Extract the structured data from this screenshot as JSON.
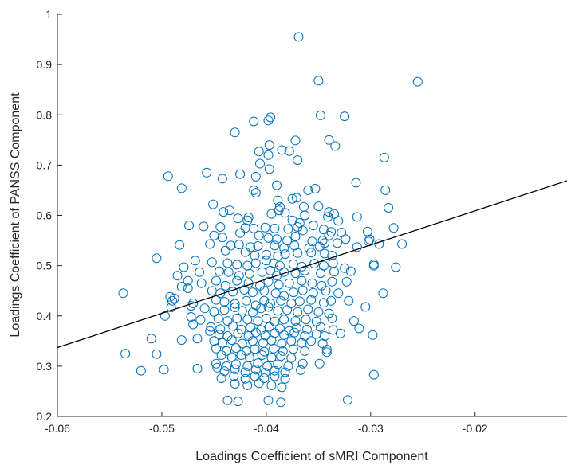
{
  "chart_data": {
    "type": "scatter",
    "title": "",
    "xlabel": "Loadings Coefficient of sMRI Component",
    "ylabel": "Loadings Coefficient of PANSS Component",
    "xlim": [
      -0.06,
      -0.0112
    ],
    "ylim": [
      0.2,
      1.0
    ],
    "xticks": [
      -0.06,
      -0.05,
      -0.04,
      -0.03,
      -0.02
    ],
    "xtick_labels": [
      "-0.06",
      "-0.05",
      "-0.04",
      "-0.03",
      "-0.02"
    ],
    "yticks": [
      0.2,
      0.3,
      0.4,
      0.5,
      0.6,
      0.7,
      0.8,
      0.9,
      1.0
    ],
    "ytick_labels": [
      "0.2",
      "0.3",
      "0.4",
      "0.5",
      "0.6",
      "0.7",
      "0.8",
      "0.9",
      "1"
    ],
    "grid": false,
    "marker_color": "#0072BD",
    "line_color": "#000000",
    "fit_line": {
      "x": [
        -0.06,
        -0.0112
      ],
      "y": [
        0.337,
        0.669
      ]
    },
    "points": [
      [
        -0.0369,
        0.955
      ],
      [
        -0.035,
        0.868
      ],
      [
        -0.0255,
        0.866
      ],
      [
        -0.0398,
        0.789
      ],
      [
        -0.0396,
        0.795
      ],
      [
        -0.0412,
        0.787
      ],
      [
        -0.0325,
        0.797
      ],
      [
        -0.0348,
        0.799
      ],
      [
        -0.043,
        0.765
      ],
      [
        -0.0372,
        0.749
      ],
      [
        -0.034,
        0.75
      ],
      [
        -0.0397,
        0.74
      ],
      [
        -0.0385,
        0.73
      ],
      [
        -0.0407,
        0.727
      ],
      [
        -0.0378,
        0.728
      ],
      [
        -0.0334,
        0.738
      ],
      [
        -0.0287,
        0.715
      ],
      [
        -0.037,
        0.71
      ],
      [
        -0.0398,
        0.72
      ],
      [
        -0.0406,
        0.703
      ],
      [
        -0.0397,
        0.692
      ],
      [
        -0.0425,
        0.682
      ],
      [
        -0.041,
        0.677
      ],
      [
        -0.0442,
        0.673
      ],
      [
        -0.0457,
        0.685
      ],
      [
        -0.0494,
        0.678
      ],
      [
        -0.039,
        0.66
      ],
      [
        -0.0412,
        0.65
      ],
      [
        -0.041,
        0.645
      ],
      [
        -0.036,
        0.65
      ],
      [
        -0.0353,
        0.653
      ],
      [
        -0.0314,
        0.665
      ],
      [
        -0.0286,
        0.65
      ],
      [
        -0.0481,
        0.654
      ],
      [
        -0.0375,
        0.633
      ],
      [
        -0.0389,
        0.63
      ],
      [
        -0.0371,
        0.635
      ],
      [
        -0.0387,
        0.617
      ],
      [
        -0.0364,
        0.617
      ],
      [
        -0.035,
        0.618
      ],
      [
        -0.0441,
        0.607
      ],
      [
        -0.0451,
        0.622
      ],
      [
        -0.0474,
        0.58
      ],
      [
        -0.046,
        0.578
      ],
      [
        -0.034,
        0.607
      ],
      [
        -0.0335,
        0.603
      ],
      [
        -0.0313,
        0.597
      ],
      [
        -0.0283,
        0.615
      ],
      [
        -0.0435,
        0.61
      ],
      [
        -0.0417,
        0.596
      ],
      [
        -0.0388,
        0.61
      ],
      [
        -0.0395,
        0.603
      ],
      [
        -0.0382,
        0.605
      ],
      [
        -0.0375,
        0.59
      ],
      [
        -0.0368,
        0.585
      ],
      [
        -0.0363,
        0.6
      ],
      [
        -0.0341,
        0.597
      ],
      [
        -0.0331,
        0.589
      ],
      [
        -0.0355,
        0.58
      ],
      [
        -0.0418,
        0.59
      ],
      [
        -0.0427,
        0.594
      ],
      [
        -0.0444,
        0.577
      ],
      [
        -0.042,
        0.575
      ],
      [
        -0.0412,
        0.574
      ],
      [
        -0.0401,
        0.576
      ],
      [
        -0.0392,
        0.574
      ],
      [
        -0.0379,
        0.573
      ],
      [
        -0.037,
        0.577
      ],
      [
        -0.0365,
        0.57
      ],
      [
        -0.0345,
        0.572
      ],
      [
        -0.0338,
        0.567
      ],
      [
        -0.0328,
        0.566
      ],
      [
        -0.0303,
        0.568
      ],
      [
        -0.0278,
        0.575
      ],
      [
        -0.045,
        0.56
      ],
      [
        -0.0442,
        0.556
      ],
      [
        -0.0425,
        0.565
      ],
      [
        -0.0407,
        0.56
      ],
      [
        -0.0398,
        0.555
      ],
      [
        -0.039,
        0.553
      ],
      [
        -0.038,
        0.55
      ],
      [
        -0.0372,
        0.558
      ],
      [
        -0.0356,
        0.548
      ],
      [
        -0.0346,
        0.55
      ],
      [
        -0.034,
        0.56
      ],
      [
        -0.0324,
        0.553
      ],
      [
        -0.0301,
        0.552
      ],
      [
        -0.0302,
        0.548
      ],
      [
        -0.0434,
        0.54
      ],
      [
        -0.0426,
        0.542
      ],
      [
        -0.0415,
        0.537
      ],
      [
        -0.0408,
        0.539
      ],
      [
        -0.0392,
        0.54
      ],
      [
        -0.0383,
        0.535
      ],
      [
        -0.0373,
        0.54
      ],
      [
        -0.0359,
        0.535
      ],
      [
        -0.0349,
        0.538
      ],
      [
        -0.0344,
        0.545
      ],
      [
        -0.0332,
        0.545
      ],
      [
        -0.0313,
        0.537
      ],
      [
        -0.0292,
        0.543
      ],
      [
        -0.027,
        0.543
      ],
      [
        -0.0483,
        0.541
      ],
      [
        -0.0454,
        0.543
      ],
      [
        -0.0439,
        0.53
      ],
      [
        -0.042,
        0.527
      ],
      [
        -0.0411,
        0.52
      ],
      [
        -0.04,
        0.522
      ],
      [
        -0.0389,
        0.519
      ],
      [
        -0.0382,
        0.523
      ],
      [
        -0.037,
        0.525
      ],
      [
        -0.0357,
        0.526
      ],
      [
        -0.0344,
        0.524
      ],
      [
        -0.0337,
        0.52
      ],
      [
        -0.0505,
        0.515
      ],
      [
        -0.0468,
        0.51
      ],
      [
        -0.0452,
        0.507
      ],
      [
        -0.0437,
        0.505
      ],
      [
        -0.0428,
        0.502
      ],
      [
        -0.0418,
        0.5
      ],
      [
        -0.041,
        0.505
      ],
      [
        -0.04,
        0.51
      ],
      [
        -0.0393,
        0.505
      ],
      [
        -0.0387,
        0.5
      ],
      [
        -0.0374,
        0.503
      ],
      [
        -0.0366,
        0.498
      ],
      [
        -0.0354,
        0.504
      ],
      [
        -0.0345,
        0.5
      ],
      [
        -0.0336,
        0.505
      ],
      [
        -0.0325,
        0.495
      ],
      [
        -0.0297,
        0.5
      ],
      [
        -0.0297,
        0.503
      ],
      [
        -0.0276,
        0.497
      ],
      [
        -0.0479,
        0.497
      ],
      [
        -0.0464,
        0.487
      ],
      [
        -0.0445,
        0.489
      ],
      [
        -0.0436,
        0.487
      ],
      [
        -0.0426,
        0.48
      ],
      [
        -0.0416,
        0.484
      ],
      [
        -0.0404,
        0.487
      ],
      [
        -0.0396,
        0.49
      ],
      [
        -0.039,
        0.48
      ],
      [
        -0.0383,
        0.487
      ],
      [
        -0.0372,
        0.485
      ],
      [
        -0.0363,
        0.49
      ],
      [
        -0.0348,
        0.485
      ],
      [
        -0.0335,
        0.488
      ],
      [
        -0.0319,
        0.489
      ],
      [
        -0.0485,
        0.48
      ],
      [
        -0.0475,
        0.47
      ],
      [
        -0.0462,
        0.465
      ],
      [
        -0.0448,
        0.47
      ],
      [
        -0.0439,
        0.46
      ],
      [
        -0.0428,
        0.47
      ],
      [
        -0.0417,
        0.465
      ],
      [
        -0.0406,
        0.46
      ],
      [
        -0.0398,
        0.468
      ],
      [
        -0.0388,
        0.462
      ],
      [
        -0.0378,
        0.465
      ],
      [
        -0.0366,
        0.47
      ],
      [
        -0.0356,
        0.465
      ],
      [
        -0.0347,
        0.46
      ],
      [
        -0.0337,
        0.468
      ],
      [
        -0.0323,
        0.468
      ],
      [
        -0.0288,
        0.445
      ],
      [
        -0.0481,
        0.458
      ],
      [
        -0.0475,
        0.455
      ],
      [
        -0.0452,
        0.45
      ],
      [
        -0.0444,
        0.445
      ],
      [
        -0.0432,
        0.448
      ],
      [
        -0.0421,
        0.452
      ],
      [
        -0.0413,
        0.447
      ],
      [
        -0.0402,
        0.45
      ],
      [
        -0.0391,
        0.445
      ],
      [
        -0.0383,
        0.44
      ],
      [
        -0.0374,
        0.447
      ],
      [
        -0.0365,
        0.451
      ],
      [
        -0.0355,
        0.446
      ],
      [
        -0.0343,
        0.45
      ],
      [
        -0.0331,
        0.445
      ],
      [
        -0.0537,
        0.445
      ],
      [
        -0.0492,
        0.438
      ],
      [
        -0.0488,
        0.435
      ],
      [
        -0.049,
        0.43
      ],
      [
        -0.047,
        0.425
      ],
      [
        -0.0448,
        0.432
      ],
      [
        -0.044,
        0.428
      ],
      [
        -0.043,
        0.424
      ],
      [
        -0.0419,
        0.43
      ],
      [
        -0.041,
        0.421
      ],
      [
        -0.0402,
        0.43
      ],
      [
        -0.0396,
        0.425
      ],
      [
        -0.0386,
        0.43
      ],
      [
        -0.0376,
        0.425
      ],
      [
        -0.0368,
        0.429
      ],
      [
        -0.0357,
        0.432
      ],
      [
        -0.0345,
        0.426
      ],
      [
        -0.0338,
        0.43
      ],
      [
        -0.0321,
        0.43
      ],
      [
        -0.0491,
        0.417
      ],
      [
        -0.0472,
        0.42
      ],
      [
        -0.0459,
        0.415
      ],
      [
        -0.045,
        0.408
      ],
      [
        -0.044,
        0.412
      ],
      [
        -0.043,
        0.417
      ],
      [
        -0.0423,
        0.41
      ],
      [
        -0.0413,
        0.407
      ],
      [
        -0.0405,
        0.415
      ],
      [
        -0.0398,
        0.418
      ],
      [
        -0.0389,
        0.41
      ],
      [
        -0.038,
        0.412
      ],
      [
        -0.037,
        0.408
      ],
      [
        -0.036,
        0.413
      ],
      [
        -0.035,
        0.408
      ],
      [
        -0.034,
        0.405
      ],
      [
        -0.0305,
        0.418
      ],
      [
        -0.0497,
        0.4
      ],
      [
        -0.0472,
        0.398
      ],
      [
        -0.0463,
        0.392
      ],
      [
        -0.0446,
        0.395
      ],
      [
        -0.0437,
        0.39
      ],
      [
        -0.0428,
        0.395
      ],
      [
        -0.0418,
        0.393
      ],
      [
        -0.0408,
        0.39
      ],
      [
        -0.04,
        0.395
      ],
      [
        -0.0392,
        0.389
      ],
      [
        -0.0383,
        0.393
      ],
      [
        -0.0372,
        0.39
      ],
      [
        -0.0362,
        0.393
      ],
      [
        -0.0352,
        0.389
      ],
      [
        -0.0337,
        0.395
      ],
      [
        -0.0316,
        0.39
      ],
      [
        -0.047,
        0.383
      ],
      [
        -0.0453,
        0.378
      ],
      [
        -0.0444,
        0.374
      ],
      [
        -0.0432,
        0.38
      ],
      [
        -0.0424,
        0.373
      ],
      [
        -0.0415,
        0.377
      ],
      [
        -0.0405,
        0.372
      ],
      [
        -0.0397,
        0.378
      ],
      [
        -0.0387,
        0.375
      ],
      [
        -0.0378,
        0.37
      ],
      [
        -0.0371,
        0.376
      ],
      [
        -0.0361,
        0.373
      ],
      [
        -0.0348,
        0.378
      ],
      [
        -0.0336,
        0.372
      ],
      [
        -0.0311,
        0.375
      ],
      [
        -0.0454,
        0.37
      ],
      [
        -0.0445,
        0.363
      ],
      [
        -0.0437,
        0.36
      ],
      [
        -0.0427,
        0.365
      ],
      [
        -0.0417,
        0.36
      ],
      [
        -0.041,
        0.367
      ],
      [
        -0.0401,
        0.361
      ],
      [
        -0.0392,
        0.366
      ],
      [
        -0.0383,
        0.362
      ],
      [
        -0.0373,
        0.367
      ],
      [
        -0.0363,
        0.36
      ],
      [
        -0.0352,
        0.364
      ],
      [
        -0.0344,
        0.36
      ],
      [
        -0.0329,
        0.365
      ],
      [
        -0.0298,
        0.362
      ],
      [
        -0.051,
        0.355
      ],
      [
        -0.0481,
        0.352
      ],
      [
        -0.0466,
        0.355
      ],
      [
        -0.045,
        0.35
      ],
      [
        -0.0442,
        0.346
      ],
      [
        -0.0433,
        0.352
      ],
      [
        -0.0423,
        0.345
      ],
      [
        -0.0413,
        0.35
      ],
      [
        -0.0403,
        0.346
      ],
      [
        -0.0395,
        0.351
      ],
      [
        -0.0385,
        0.345
      ],
      [
        -0.0376,
        0.35
      ],
      [
        -0.0366,
        0.346
      ],
      [
        -0.0357,
        0.35
      ],
      [
        -0.0346,
        0.345
      ],
      [
        -0.0448,
        0.335
      ],
      [
        -0.0438,
        0.33
      ],
      [
        -0.0429,
        0.336
      ],
      [
        -0.0419,
        0.33
      ],
      [
        -0.0411,
        0.334
      ],
      [
        -0.0402,
        0.329
      ],
      [
        -0.0393,
        0.335
      ],
      [
        -0.0384,
        0.33
      ],
      [
        -0.0374,
        0.334
      ],
      [
        -0.0363,
        0.33
      ],
      [
        -0.0342,
        0.333
      ],
      [
        -0.0342,
        0.328
      ],
      [
        -0.0535,
        0.325
      ],
      [
        -0.0505,
        0.324
      ],
      [
        -0.0443,
        0.322
      ],
      [
        -0.0433,
        0.318
      ],
      [
        -0.0424,
        0.322
      ],
      [
        -0.0416,
        0.317
      ],
      [
        -0.0404,
        0.322
      ],
      [
        -0.0395,
        0.317
      ],
      [
        -0.0386,
        0.32
      ],
      [
        -0.0376,
        0.316
      ],
      [
        -0.0448,
        0.305
      ],
      [
        -0.0438,
        0.3
      ],
      [
        -0.0429,
        0.304
      ],
      [
        -0.0418,
        0.3
      ],
      [
        -0.0408,
        0.306
      ],
      [
        -0.0399,
        0.3
      ],
      [
        -0.0389,
        0.304
      ],
      [
        -0.0379,
        0.3
      ],
      [
        -0.0365,
        0.305
      ],
      [
        -0.0349,
        0.305
      ],
      [
        -0.052,
        0.291
      ],
      [
        -0.0498,
        0.293
      ],
      [
        -0.0466,
        0.295
      ],
      [
        -0.0447,
        0.297
      ],
      [
        -0.044,
        0.29
      ],
      [
        -0.043,
        0.294
      ],
      [
        -0.042,
        0.288
      ],
      [
        -0.041,
        0.293
      ],
      [
        -0.0401,
        0.287
      ],
      [
        -0.0392,
        0.291
      ],
      [
        -0.0382,
        0.288
      ],
      [
        -0.0367,
        0.292
      ],
      [
        -0.0297,
        0.283
      ],
      [
        -0.0443,
        0.276
      ],
      [
        -0.0431,
        0.28
      ],
      [
        -0.042,
        0.275
      ],
      [
        -0.0411,
        0.28
      ],
      [
        -0.0402,
        0.276
      ],
      [
        -0.0392,
        0.28
      ],
      [
        -0.0382,
        0.275
      ],
      [
        -0.043,
        0.265
      ],
      [
        -0.0418,
        0.262
      ],
      [
        -0.0407,
        0.266
      ],
      [
        -0.0395,
        0.262
      ],
      [
        -0.0385,
        0.258
      ],
      [
        -0.0437,
        0.232
      ],
      [
        -0.0427,
        0.23
      ],
      [
        -0.0398,
        0.232
      ],
      [
        -0.0386,
        0.228
      ],
      [
        -0.0322,
        0.233
      ]
    ]
  }
}
